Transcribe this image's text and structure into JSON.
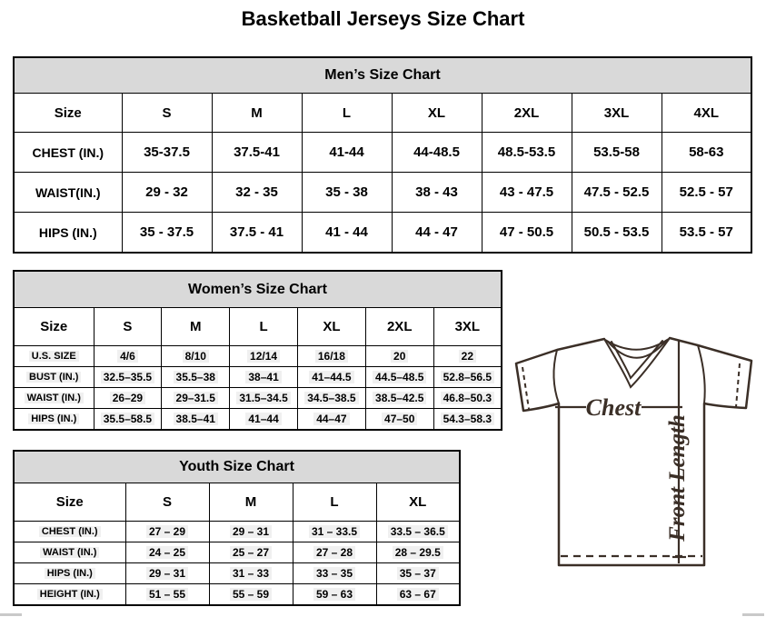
{
  "page_title": "Basketball Jerseys Size Chart",
  "colors": {
    "table_header_bg": "#d9d9d9",
    "table_border": "#000000",
    "value_highlight": "#f0f0f0",
    "jersey_line": "#3b2f27",
    "edge_fragment": "#c9c9c9"
  },
  "tables": [
    {
      "id": "mens",
      "title": "Men’s Size Chart",
      "columns": [
        "Size",
        "S",
        "M",
        "L",
        "XL",
        "2XL",
        "3XL",
        "4XL"
      ],
      "rows": [
        {
          "label": "CHEST (IN.)",
          "values": [
            "35-37.5",
            "37.5-41",
            "41-44",
            "44-48.5",
            "48.5-53.5",
            "53.5-58",
            "58-63"
          ]
        },
        {
          "label": "WAIST(IN.)",
          "values": [
            "29 - 32",
            "32 - 35",
            "35 - 38",
            "38 - 43",
            "43 - 47.5",
            "47.5 - 52.5",
            "52.5 - 57"
          ]
        },
        {
          "label": "HIPS (IN.)",
          "values": [
            "35 - 37.5",
            "37.5 - 41",
            "41 - 44",
            "44 - 47",
            "47 - 50.5",
            "50.5 - 53.5",
            "53.5 - 57"
          ]
        }
      ]
    },
    {
      "id": "womens",
      "title": "Women’s Size Chart",
      "columns": [
        "Size",
        "S",
        "M",
        "L",
        "XL",
        "2XL",
        "3XL"
      ],
      "rows": [
        {
          "label": "U.S. SIZE",
          "values": [
            "4/6",
            "8/10",
            "12/14",
            "16/18",
            "20",
            "22"
          ]
        },
        {
          "label": "BUST (IN.)",
          "values": [
            "32.5–35.5",
            "35.5–38",
            "38–41",
            "41–44.5",
            "44.5–48.5",
            "52.8–56.5"
          ]
        },
        {
          "label": "WAIST (IN.)",
          "values": [
            "26–29",
            "29–31.5",
            "31.5–34.5",
            "34.5–38.5",
            "38.5–42.5",
            "46.8–50.3"
          ]
        },
        {
          "label": "HIPS (IN.)",
          "values": [
            "35.5–58.5",
            "38.5–41",
            "41–44",
            "44–47",
            "47–50",
            "54.3–58.3"
          ]
        }
      ]
    },
    {
      "id": "youth",
      "title": "Youth Size Chart",
      "columns": [
        "Size",
        "S",
        "M",
        "L",
        "XL"
      ],
      "rows": [
        {
          "label": "CHEST (IN.)",
          "values": [
            "27 – 29",
            "29 – 31",
            "31 – 33.5",
            "33.5 – 36.5"
          ]
        },
        {
          "label": "WAIST (IN.)",
          "values": [
            "24 – 25",
            "25 – 27",
            "27 – 28",
            "28 – 29.5"
          ]
        },
        {
          "label": "HIPS (IN.)",
          "values": [
            "29 – 31",
            "31 – 33",
            "33 – 35",
            "35 – 37"
          ]
        },
        {
          "label": "HEIGHT (IN.)",
          "values": [
            "51 – 55",
            "55 – 59",
            "59 – 63",
            "63 – 67"
          ]
        }
      ]
    }
  ],
  "diagram": {
    "chest_label": "Chest",
    "front_length_label": "Front Length"
  }
}
